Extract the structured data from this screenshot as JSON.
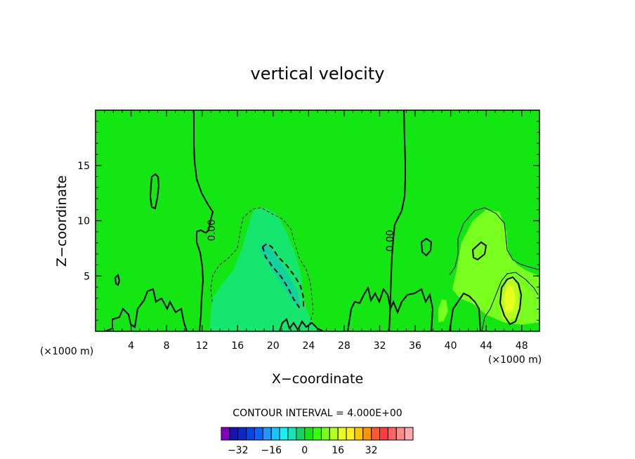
{
  "chart_data": {
    "type": "heatmap",
    "title": "vertical velocity",
    "xlabel": "X−coordinate",
    "ylabel": "Z−coordinate",
    "x_units_left": "(×1000 m)",
    "x_units_right": "(×1000 m)",
    "xlim": [
      0,
      50
    ],
    "ylim": [
      0,
      20
    ],
    "x_ticks": [
      4,
      8,
      12,
      16,
      20,
      24,
      28,
      32,
      36,
      40,
      44,
      48
    ],
    "x_tick_labels": [
      "4",
      "8",
      "12",
      "16",
      "20",
      "24",
      "28",
      "32",
      "36",
      "40",
      "44",
      "48"
    ],
    "y_ticks": [
      5,
      10,
      15
    ],
    "y_tick_labels": [
      "5",
      "10",
      "15"
    ],
    "contour_interval_label": "CONTOUR INTERVAL = 4.000E+00",
    "contour_labels": [
      "0.00",
      "0.00"
    ],
    "colorbar": {
      "tick_values": [
        -32,
        -16,
        0,
        16,
        32
      ],
      "tick_labels": [
        "−32",
        "−16",
        "0",
        "16",
        "32"
      ],
      "colors": [
        "#7f00bf",
        "#1414b4",
        "#0a28c8",
        "#0046e6",
        "#0a64ff",
        "#1e96ff",
        "#14c8ff",
        "#14f0f0",
        "#14e6b4",
        "#14d264",
        "#14e614",
        "#32ff0a",
        "#78ff1e",
        "#b4ff1e",
        "#e6ff1e",
        "#fff01e",
        "#ffc800",
        "#ff9600",
        "#ff5a28",
        "#ff3c3c",
        "#ff6464",
        "#ff8c8c",
        "#ffaaaa"
      ]
    },
    "background_value": 0,
    "regions": [
      {
        "label": "updraft-central",
        "level": -4,
        "color": "#14e66e",
        "points": [
          [
            12.8,
            0
          ],
          [
            13.2,
            3
          ],
          [
            14,
            4
          ],
          [
            15.5,
            5.5
          ],
          [
            16.5,
            7.5
          ],
          [
            17.2,
            9.5
          ],
          [
            17.8,
            11
          ],
          [
            19,
            11.2
          ],
          [
            20.5,
            10.5
          ],
          [
            21.5,
            9
          ],
          [
            22.5,
            7
          ],
          [
            23.2,
            5
          ],
          [
            23.4,
            3
          ],
          [
            24,
            1.5
          ],
          [
            25,
            0
          ]
        ]
      },
      {
        "label": "downdraft-core",
        "level": -8,
        "color": "#14d2a0",
        "points": [
          [
            18.6,
            8
          ],
          [
            19.5,
            7.8
          ],
          [
            20.7,
            6.5
          ],
          [
            21.8,
            5
          ],
          [
            22.8,
            3.5
          ],
          [
            23.1,
            2.2
          ],
          [
            22.5,
            2.4
          ],
          [
            21.6,
            3.5
          ],
          [
            20.5,
            4.8
          ],
          [
            19.4,
            6.2
          ],
          [
            18.6,
            7.2
          ]
        ]
      },
      {
        "label": "updraft-east",
        "level": 4,
        "color": "#78ff1e",
        "points": [
          [
            40.2,
            3.8
          ],
          [
            40.8,
            6
          ],
          [
            41.2,
            8
          ],
          [
            42.5,
            10
          ],
          [
            44,
            11
          ],
          [
            45.5,
            10.8
          ],
          [
            46.3,
            9
          ],
          [
            46.5,
            7
          ],
          [
            47.5,
            6
          ],
          [
            48.5,
            5.5
          ],
          [
            50,
            5
          ],
          [
            50,
            0.8
          ],
          [
            48,
            0.6
          ],
          [
            46,
            0.8
          ],
          [
            44,
            1.5
          ],
          [
            42.5,
            2.5
          ],
          [
            41,
            3
          ]
        ]
      },
      {
        "label": "updraft-east-core",
        "level": 8,
        "color": "#b4ff1e",
        "points": [
          [
            45.8,
            1.2
          ],
          [
            46.5,
            0.9
          ],
          [
            47.3,
            1.2
          ],
          [
            47.8,
            2.5
          ],
          [
            47.6,
            4
          ],
          [
            47,
            4.9
          ],
          [
            46.4,
            4.6
          ],
          [
            45.8,
            3.6
          ],
          [
            45.6,
            2.4
          ]
        ]
      },
      {
        "label": "updraft-east-peak",
        "level": 12,
        "color": "#e6ff1e",
        "points": [
          [
            46.1,
            1.8
          ],
          [
            46.6,
            1.6
          ],
          [
            47.1,
            2
          ],
          [
            47.3,
            3
          ],
          [
            47,
            4
          ],
          [
            46.6,
            4.3
          ],
          [
            46.2,
            3.8
          ],
          [
            46,
            2.8
          ]
        ]
      },
      {
        "label": "updraft-small-1",
        "level": 4,
        "color": "#78ff1e",
        "points": [
          [
            38.6,
            0.8
          ],
          [
            39.2,
            0.9
          ],
          [
            39.7,
            1.8
          ],
          [
            39.5,
            2.8
          ],
          [
            39,
            2.9
          ],
          [
            38.6,
            2
          ]
        ]
      },
      {
        "label": "updraft-mid",
        "level": 4,
        "color": "#78ff1e",
        "points": [
          [
            43.3,
            6.6
          ],
          [
            43.9,
            6.9
          ],
          [
            44.1,
            7.8
          ],
          [
            43.7,
            8.3
          ],
          [
            43.2,
            7.8
          ],
          [
            43,
            7
          ]
        ]
      }
    ]
  }
}
